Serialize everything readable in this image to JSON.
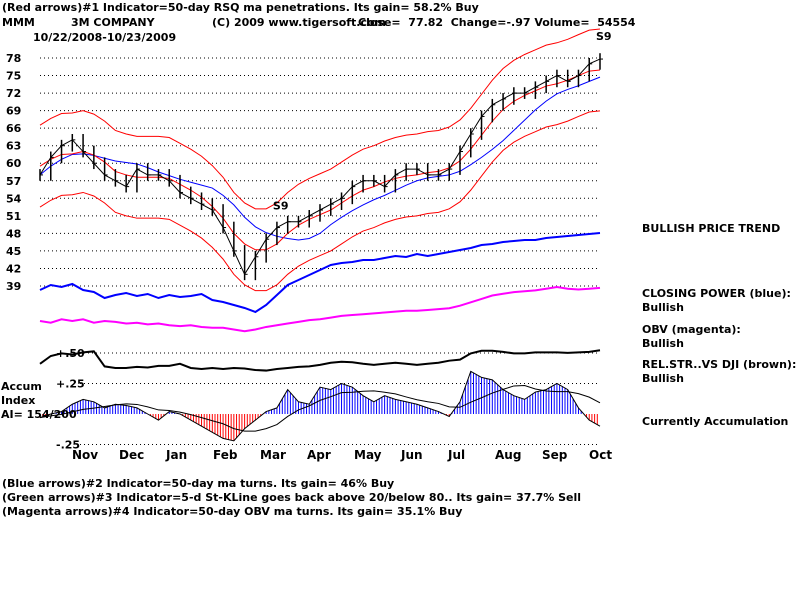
{
  "header": {
    "line1": "(Red arrows)#1 Indicator=50-day RSQ ma penetrations. Its gain= 58.2% Buy",
    "symbol": "MMM",
    "company": "3M COMPANY",
    "copyright": "(C) 2009 www.tigersoft.com",
    "quote": "Close=  77.82  Change=-.97 Volume=  54554",
    "date_range": "10/22/2008-10/23/2009"
  },
  "right_labels": {
    "trend": "BULLISH PRICE TREND",
    "cp_title": "CLOSING POWER (blue):",
    "cp_value": "Bullish",
    "obv_title": "OBV (magenta):",
    "obv_value": "Bullish",
    "rs_title": "REL.STR..VS DJI (brown):",
    "rs_value": "Bullish",
    "accum_status": "Currently Accumulation"
  },
  "accum_label": {
    "l1": "Accum",
    "l2": "Index",
    "l3": "AI= 154/200"
  },
  "footer": {
    "line2": "(Blue arrows)#2 Indicator=50-day ma turns. Its gain= 46% Buy",
    "line3": "(Green arrows)#3 Indicator=5-d St-KLine goes back above 20/below 80.. Its gain= 37.7% Sell",
    "line4": "(Magenta arrows)#4 Indicator=50-day OBV ma turns. Its gain= 35.1% Buy"
  },
  "signals": [
    "S9",
    "S9"
  ],
  "colors": {
    "price": "#000000",
    "bands": "#ff0000",
    "ma": "#0000ff",
    "closing_power": "#0000ff",
    "obv": "#ff00ff",
    "rel_str": "#000000",
    "accum_pos": "#0000ff",
    "accum_neg": "#ff0000"
  },
  "chart_data": {
    "type": "line",
    "title": "3M COMPANY",
    "x_tick_labels": [
      "Nov",
      "Dec",
      "Jan",
      "Feb",
      "Mar",
      "Apr",
      "May",
      "Jun",
      "Jul",
      "Aug",
      "Sep",
      "Oct"
    ],
    "price_y_ticks": [
      39,
      42,
      45,
      48,
      51,
      54,
      57,
      60,
      63,
      66,
      69,
      72,
      75,
      78
    ],
    "price_ylim": [
      38,
      80
    ],
    "accum_y_ticks": [
      "+.50",
      "+.25",
      "-.25"
    ],
    "accum_ylim": [
      -0.25,
      0.5
    ],
    "grid": "horizontal dotted",
    "close_weekly": [
      58,
      61,
      63,
      64,
      62,
      60,
      58,
      57,
      56,
      59,
      58,
      58,
      57,
      55,
      54,
      53,
      52,
      49,
      45,
      41,
      44,
      47,
      49,
      50,
      50,
      51,
      52,
      53,
      54,
      56,
      57,
      57,
      56,
      58,
      59,
      59,
      58,
      58,
      59,
      62,
      65,
      68,
      70,
      71,
      72,
      72,
      73,
      74,
      75,
      74,
      75,
      77,
      77.82
    ],
    "closing_power_relative": [
      30,
      35,
      33,
      36,
      30,
      28,
      22,
      25,
      27,
      24,
      26,
      22,
      25,
      23,
      24,
      26,
      20,
      18,
      15,
      12,
      8,
      15,
      25,
      35,
      40,
      45,
      50,
      55,
      57,
      58,
      60,
      60,
      62,
      64,
      63,
      66,
      64,
      66,
      68,
      70,
      72,
      75,
      76,
      78,
      79,
      80,
      80,
      82,
      83,
      84,
      85,
      86,
      87
    ],
    "obv_relative": [
      20,
      18,
      22,
      20,
      22,
      18,
      20,
      19,
      17,
      18,
      16,
      17,
      15,
      14,
      15,
      13,
      12,
      12,
      10,
      8,
      10,
      13,
      15,
      17,
      19,
      21,
      22,
      24,
      26,
      27,
      28,
      29,
      30,
      31,
      32,
      32,
      33,
      34,
      35,
      38,
      42,
      46,
      50,
      52,
      54,
      55,
      56,
      58,
      60,
      58,
      57,
      58,
      59
    ],
    "rel_str_relative": [
      60,
      75,
      80,
      78,
      82,
      84,
      55,
      52,
      52,
      54,
      53,
      56,
      56,
      60,
      52,
      50,
      52,
      50,
      52,
      51,
      48,
      47,
      50,
      52,
      54,
      55,
      58,
      62,
      64,
      63,
      60,
      58,
      60,
      62,
      60,
      58,
      60,
      62,
      66,
      68,
      80,
      85,
      85,
      83,
      80,
      80,
      82,
      82,
      82,
      81,
      82,
      83,
      86
    ],
    "accum_index": [
      -0.03,
      0.0,
      0.02,
      0.08,
      0.12,
      0.1,
      0.05,
      0.08,
      0.07,
      0.05,
      0.0,
      -0.05,
      0.02,
      0.0,
      -0.05,
      -0.1,
      -0.15,
      -0.2,
      -0.22,
      -0.12,
      -0.05,
      0.02,
      0.05,
      0.2,
      0.1,
      0.08,
      0.22,
      0.2,
      0.25,
      0.22,
      0.15,
      0.1,
      0.15,
      0.12,
      0.1,
      0.08,
      0.05,
      0.02,
      -0.02,
      0.1,
      0.35,
      0.3,
      0.28,
      0.2,
      0.15,
      0.12,
      0.18,
      0.2,
      0.25,
      0.2,
      0.05,
      -0.05,
      -0.1
    ]
  }
}
